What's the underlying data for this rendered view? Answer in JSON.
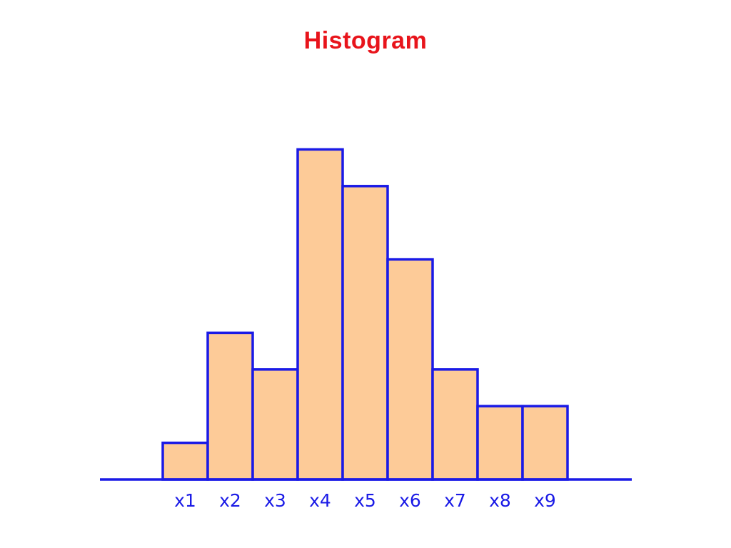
{
  "title": "Histogram",
  "colors": {
    "title": "#e8141b",
    "bar_fill": "#fdcb98",
    "bar_stroke": "#1a1ae6",
    "axis": "#1a1ae6",
    "tick_label": "#1a1ae6"
  },
  "chart_data": {
    "type": "bar",
    "title": "Histogram",
    "xlabel": "",
    "ylabel": "",
    "categories": [
      "x1",
      "x2",
      "x3",
      "x4",
      "x5",
      "x6",
      "x7",
      "x8",
      "x9"
    ],
    "values": [
      1,
      4,
      3,
      9,
      8,
      6,
      3,
      2,
      2
    ],
    "ylim": [
      0,
      9
    ],
    "grid": false,
    "legend": "none"
  }
}
